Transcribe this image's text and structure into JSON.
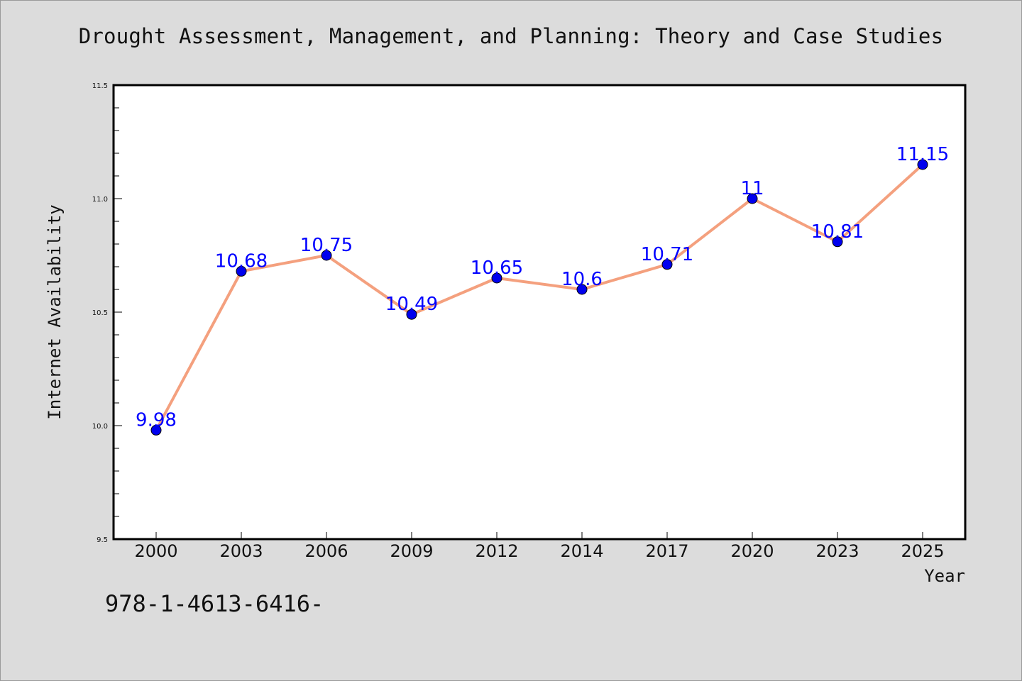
{
  "title": "Drought Assessment, Management, and Planning: Theory and Case Studies",
  "footnote": "978-1-4613-6416-",
  "colors": {
    "background": "#dcdcdc",
    "plot_background": "#ffffff",
    "line": "#f4a07e",
    "marker": "#0000ee",
    "data_label": "#0000ff"
  },
  "chart_data": {
    "type": "line",
    "categories": [
      "2000",
      "2003",
      "2006",
      "2009",
      "2012",
      "2014",
      "2017",
      "2020",
      "2023",
      "2025"
    ],
    "series": [
      {
        "values": [
          9.98,
          10.68,
          10.75,
          10.49,
          10.65,
          10.6,
          10.71,
          11,
          10.81,
          11.15
        ],
        "labels": [
          "9.98",
          "10.68",
          "10.75",
          "10.49",
          "10.65",
          "10.6",
          "10.71",
          "11",
          "10.81",
          "11.15"
        ]
      }
    ],
    "xlabel": "Year",
    "ylabel": "Internet Availability",
    "ylim": [
      9.5,
      11.5
    ],
    "yticks": [
      9.5,
      10.0,
      10.5,
      11.0,
      11.5
    ],
    "ytick_labels": [
      "9.5",
      "10.0",
      "10.5",
      "11.0",
      "11.5"
    ],
    "grid": false,
    "legend": "none"
  }
}
